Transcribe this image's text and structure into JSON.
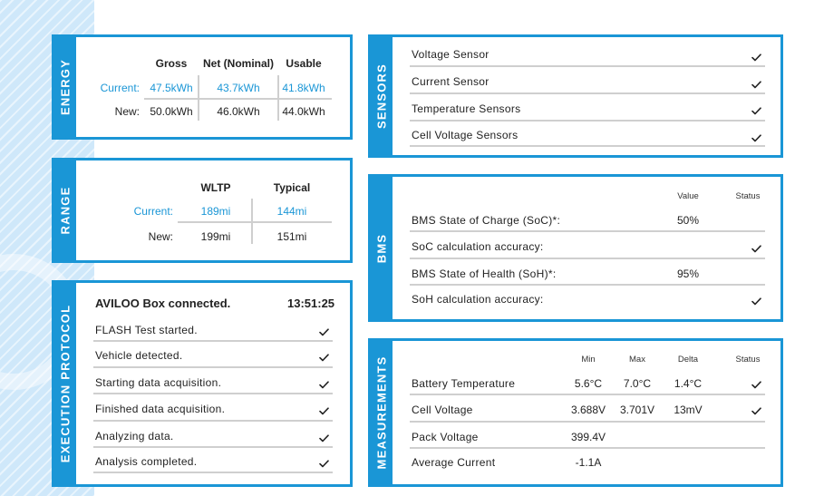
{
  "energy": {
    "title": "ENERGY",
    "columns": [
      "Gross",
      "Net (Nominal)",
      "Usable"
    ],
    "rows": [
      {
        "label": "Current:",
        "values": [
          "47.5kWh",
          "43.7kWh",
          "41.8kWh"
        ]
      },
      {
        "label": "New:",
        "values": [
          "50.0kWh",
          "46.0kWh",
          "44.0kWh"
        ]
      }
    ]
  },
  "range": {
    "title": "RANGE",
    "columns": [
      "WLTP",
      "Typical"
    ],
    "rows": [
      {
        "label": "Current:",
        "values": [
          "189mi",
          "144mi"
        ]
      },
      {
        "label": "New:",
        "values": [
          "199mi",
          "151mi"
        ]
      }
    ]
  },
  "execution": {
    "title": "EXECUTION PROTOCOL",
    "header": "AVILOO Box connected.",
    "time": "13:51:25",
    "steps": [
      "FLASH Test started.",
      "Vehicle detected.",
      "Starting data acquisition.",
      "Finished data acquisition.",
      "Analyzing data.",
      "Analysis completed."
    ]
  },
  "sensors": {
    "title": "SENSORS",
    "items": [
      "Voltage Sensor",
      "Current Sensor",
      "Temperature Sensors",
      "Cell Voltage Sensors"
    ]
  },
  "bms": {
    "title": "BMS",
    "columns": [
      "Value",
      "Status"
    ],
    "rows": [
      {
        "label": "BMS State of Charge (SoC)*:",
        "value": "50%"
      },
      {
        "label": "SoC calculation accuracy:"
      },
      {
        "label": "BMS State of Health (SoH)*:",
        "value": "95%"
      },
      {
        "label": "SoH calculation accuracy:"
      }
    ]
  },
  "measurements": {
    "title": "MEASUREMENTS",
    "columns": [
      "Min",
      "Max",
      "Delta",
      "Status"
    ],
    "rows": [
      {
        "label": "Battery Temperature",
        "min": "5.6°C",
        "max": "7.0°C",
        "delta": "1.4°C"
      },
      {
        "label": "Cell Voltage",
        "min": "3.688V",
        "max": "3.701V",
        "delta": "13mV"
      },
      {
        "label": "Pack Voltage",
        "min": "399.4V"
      },
      {
        "label": "Average Current",
        "min": "-1.1A"
      }
    ]
  },
  "icons": {
    "check": "check-icon"
  },
  "colors": {
    "accent": "#1a96d6",
    "stripe": "#cfe8fa",
    "divider": "#cfcfcf"
  }
}
